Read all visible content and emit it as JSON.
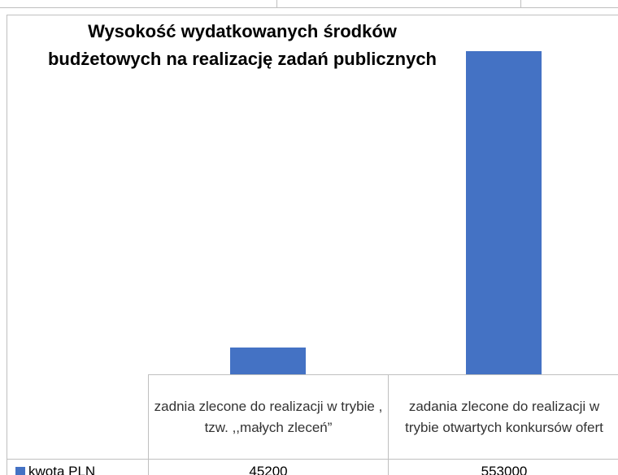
{
  "chart_data": {
    "type": "bar",
    "title": "Wysokość  wydatkowanych środków\nbudżetowych na realizację zadań publicznych",
    "categories": [
      "zadnia zlecone do realizacji w trybie , tzw. ,,małych zleceń”",
      "zadania zlecone do realizacji w trybie otwartych konkursów ofert"
    ],
    "series": [
      {
        "name": "kwota PLN",
        "color": "#4472c4",
        "values": [
          45200,
          553000
        ]
      }
    ]
  }
}
